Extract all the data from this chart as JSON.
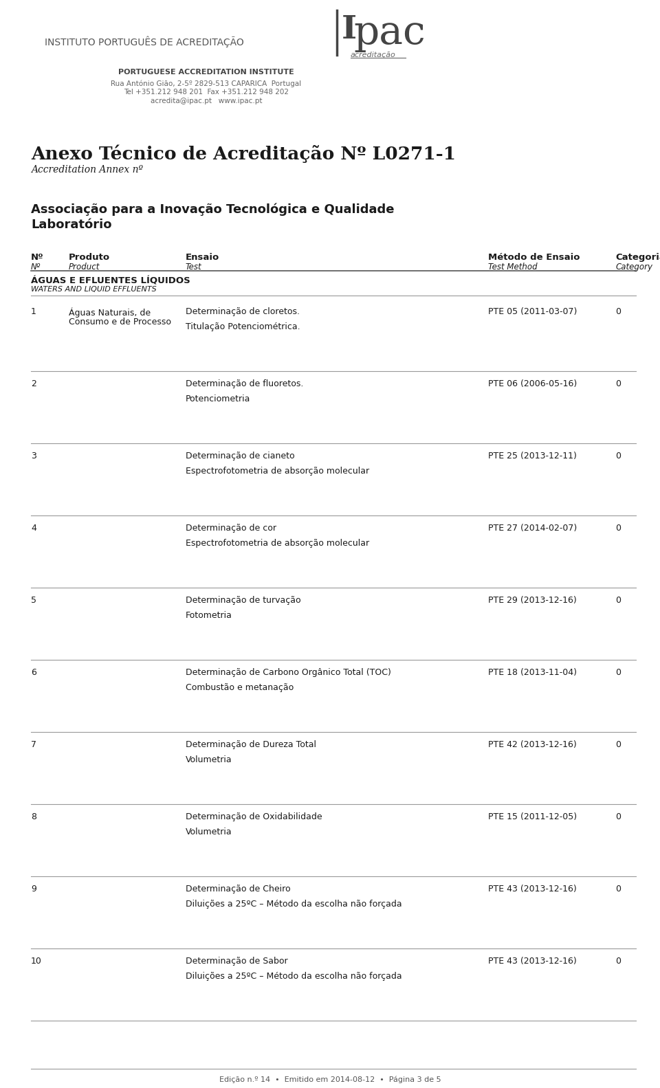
{
  "bg_color": "#ffffff",
  "header_inst": "INSTITUTO PORTUGUÊS DE ACREDITAÇÃO",
  "header_inst_color": "#555555",
  "header_sub": "PORTUGUESE ACCREDITATION INSTITUTE",
  "header_addr1": "Rua António Gião, 2-5º 2829-513 CAPARICA  Portugal",
  "header_addr2": "Tel +351.212 948 201  Fax +351.212 948 202",
  "header_addr3": "acredita@ipac.pt   www.ipac.pt",
  "main_title": "Anexo Técnico de Acreditação Nº L0271-1",
  "main_subtitle": "Accreditation Annex nº",
  "org_name": "Associação para a Inovação Tecnológica e Qualidade",
  "org_name2": "Laboratório",
  "col_headers_pt": [
    "Nº",
    "Produto",
    "Ensaio",
    "Método de Ensaio",
    "Categoria"
  ],
  "col_headers_en": [
    "Nº",
    "Product",
    "Test",
    "Test Method",
    "Category"
  ],
  "section_title_pt": "ÁGUAS E EFLUENTES LÍQUIDOS",
  "section_title_en": "WATERS AND LIQUID EFFLUENTS",
  "rows": [
    {
      "num": "1",
      "product": "Águas Naturais, de\nConsumo e de Processo",
      "test_line1": "Determinação de cloretos.",
      "test_line2": "Titulação Potenciométrica.",
      "method": "PTE 05 (2011-03-07)",
      "category": "0"
    },
    {
      "num": "2",
      "product": "",
      "test_line1": "Determinação de fluoretos.",
      "test_line2": "Potenciometria",
      "method": "PTE 06 (2006-05-16)",
      "category": "0"
    },
    {
      "num": "3",
      "product": "",
      "test_line1": "Determinação de cianeto",
      "test_line2": "Espectrofotometria de absorção molecular",
      "method": "PTE 25 (2013-12-11)",
      "category": "0"
    },
    {
      "num": "4",
      "product": "",
      "test_line1": "Determinação de cor",
      "test_line2": "Espectrofotometria de absorção molecular",
      "method": "PTE 27 (2014-02-07)",
      "category": "0"
    },
    {
      "num": "5",
      "product": "",
      "test_line1": "Determinação de turvação",
      "test_line2": "Fotometria",
      "method": "PTE 29 (2013-12-16)",
      "category": "0"
    },
    {
      "num": "6",
      "product": "",
      "test_line1": "Determinação de Carbono Orgânico Total (TOC)",
      "test_line2": "Combustão e metanação",
      "method": "PTE 18 (2013-11-04)",
      "category": "0"
    },
    {
      "num": "7",
      "product": "",
      "test_line1": "Determinação de Dureza Total",
      "test_line2": "Volumetria",
      "method": "PTE 42 (2013-12-16)",
      "category": "0"
    },
    {
      "num": "8",
      "product": "",
      "test_line1": "Determinação de Oxidabilidade",
      "test_line2": "Volumetria",
      "method": "PTE 15 (2011-12-05)",
      "category": "0"
    },
    {
      "num": "9",
      "product": "",
      "test_line1": "Determinação de Cheiro",
      "test_line2": "Diluições a 25ºC – Método da escolha não forçada",
      "method": "PTE 43 (2013-12-16)",
      "category": "0"
    },
    {
      "num": "10",
      "product": "",
      "test_line1": "Determinação de Sabor",
      "test_line2": "Diluições a 25ºC – Método da escolha não forçada",
      "method": "PTE 43 (2013-12-16)",
      "category": "0"
    }
  ],
  "footer": "Edição n.º 14  •  Emitido em 2014-08-12  •  Página 3 de 5",
  "text_color": "#1a1a1a",
  "line_color": "#999999",
  "header_logo_color": "#555555",
  "COL_NUM": 45,
  "COL_PROD": 100,
  "COL_TEST": 270,
  "COL_METH": 710,
  "COL_CAT": 895
}
